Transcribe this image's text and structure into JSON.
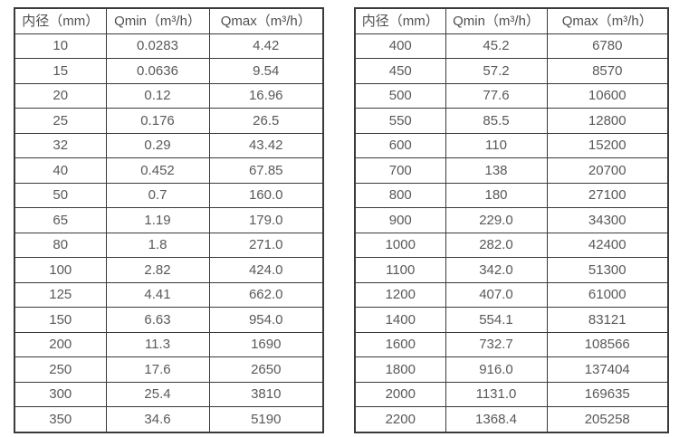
{
  "style": {
    "border_color": "#3a3a3a",
    "text_color": "#595959",
    "background": "#ffffff"
  },
  "tables": [
    {
      "id": "flow-range-table-small-diameters",
      "headers": [
        "内径（mm）",
        "Qmin（m³/h）",
        "Qmax（m³/h）"
      ],
      "rows": [
        [
          "10",
          "0.0283",
          "4.42"
        ],
        [
          "15",
          "0.0636",
          "9.54"
        ],
        [
          "20",
          "0.12",
          "16.96"
        ],
        [
          "25",
          "0.176",
          "26.5"
        ],
        [
          "32",
          "0.29",
          "43.42"
        ],
        [
          "40",
          "0.452",
          "67.85"
        ],
        [
          "50",
          "0.7",
          "160.0"
        ],
        [
          "65",
          "1.19",
          "179.0"
        ],
        [
          "80",
          "1.8",
          "271.0"
        ],
        [
          "100",
          "2.82",
          "424.0"
        ],
        [
          "125",
          "4.41",
          "662.0"
        ],
        [
          "150",
          "6.63",
          "954.0"
        ],
        [
          "200",
          "11.3",
          "1690"
        ],
        [
          "250",
          "17.6",
          "2650"
        ],
        [
          "300",
          "25.4",
          "3810"
        ],
        [
          "350",
          "34.6",
          "5190"
        ]
      ]
    },
    {
      "id": "flow-range-table-large-diameters",
      "headers": [
        "内径（mm）",
        "Qmin（m³/h）",
        "Qmax（m³/h）"
      ],
      "rows": [
        [
          "400",
          "45.2",
          "6780"
        ],
        [
          "450",
          "57.2",
          "8570"
        ],
        [
          "500",
          "77.6",
          "10600"
        ],
        [
          "550",
          "85.5",
          "12800"
        ],
        [
          "600",
          "110",
          "15200"
        ],
        [
          "700",
          "138",
          "20700"
        ],
        [
          "800",
          "180",
          "27100"
        ],
        [
          "900",
          "229.0",
          "34300"
        ],
        [
          "1000",
          "282.0",
          "42400"
        ],
        [
          "1100",
          "342.0",
          "51300"
        ],
        [
          "1200",
          "407.0",
          "61000"
        ],
        [
          "1400",
          "554.1",
          "83121"
        ],
        [
          "1600",
          "732.7",
          "108566"
        ],
        [
          "1800",
          "916.0",
          "137404"
        ],
        [
          "2000",
          "1131.0",
          "169635"
        ],
        [
          "2200",
          "1368.4",
          "205258"
        ]
      ]
    }
  ]
}
